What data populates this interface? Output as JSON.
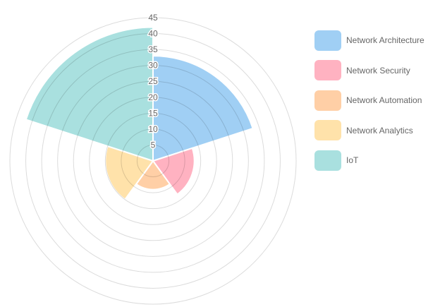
{
  "chart_data": {
    "type": "polar-area",
    "categories": [
      "Network Architecture",
      "Network Security",
      "Network Automation",
      "Network Analytics",
      "IoT"
    ],
    "values": [
      33,
      13,
      9,
      15,
      42
    ],
    "colors": [
      "#a0cff4",
      "#ffb2c1",
      "#ffcfa6",
      "#ffe2aa",
      "#a9e0df"
    ],
    "r_ticks": [
      5,
      10,
      15,
      20,
      25,
      30,
      35,
      40,
      45
    ],
    "rlim": [
      0,
      45
    ],
    "legend_position": "right",
    "grid": true
  }
}
